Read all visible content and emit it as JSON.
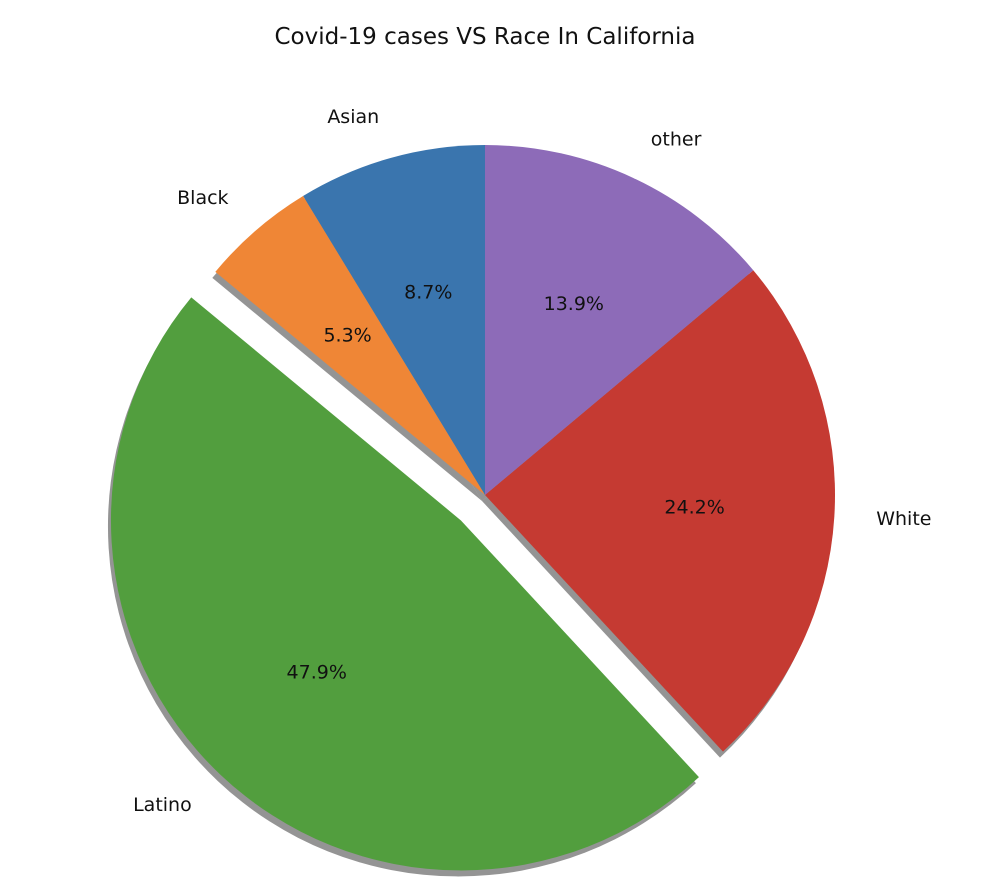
{
  "chart_data": {
    "type": "pie",
    "title": "Covid-19 cases VS Race In California",
    "slices": [
      {
        "label": "Asian",
        "value": 8.7,
        "pct_label": "8.7%",
        "color": "#3a75ae",
        "explode": false
      },
      {
        "label": "Black",
        "value": 5.3,
        "pct_label": "5.3%",
        "color": "#ef8636",
        "explode": false
      },
      {
        "label": "Latino",
        "value": 47.9,
        "pct_label": "47.9%",
        "color": "#529e3e",
        "explode": true
      },
      {
        "label": "White",
        "value": 24.2,
        "pct_label": "24.2%",
        "color": "#c53a32",
        "explode": false
      },
      {
        "label": "other",
        "value": 13.9,
        "pct_label": "13.9%",
        "color": "#8d6bb8",
        "explode": false
      }
    ],
    "start_angle": "top",
    "direction": "counterclockwise",
    "shadow": true,
    "legend": "none"
  }
}
